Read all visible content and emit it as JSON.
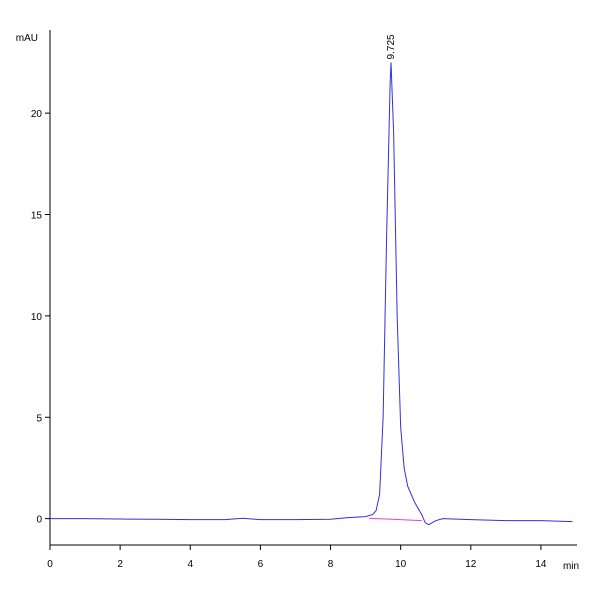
{
  "chart_data": {
    "type": "line",
    "y_label": "mAU",
    "x_label": "min",
    "x": [
      0,
      1,
      2,
      3,
      4,
      5,
      5.5,
      6,
      7,
      8,
      8.5,
      9,
      9.2,
      9.3,
      9.4,
      9.5,
      9.6,
      9.7,
      9.725,
      9.8,
      9.9,
      10.0,
      10.1,
      10.2,
      10.4,
      10.6,
      10.7,
      10.8,
      11,
      11.2,
      12,
      13,
      14,
      14.9
    ],
    "values": [
      0,
      0,
      -0.02,
      -0.03,
      -0.05,
      -0.05,
      0.02,
      -0.05,
      -0.05,
      -0.03,
      0.05,
      0.1,
      0.2,
      0.4,
      1.2,
      5,
      14,
      21.5,
      22.5,
      19,
      10,
      4.5,
      2.5,
      1.6,
      0.8,
      0.2,
      -0.2,
      -0.3,
      -0.1,
      0,
      -0.05,
      -0.1,
      -0.1,
      -0.15
    ],
    "color": "#3030e0",
    "baseline": {
      "x": [
        9.1,
        10.6
      ],
      "values": [
        0.02,
        -0.1
      ],
      "color": "#e040e0"
    },
    "peak": {
      "x": 9.725,
      "y": 22.5
    },
    "xlim": [
      0,
      15
    ],
    "xticks": [
      0,
      2,
      4,
      6,
      8,
      10,
      12,
      14
    ],
    "ylim": [
      -1.3,
      24.1
    ],
    "yticks": [
      0,
      5,
      10,
      15,
      20
    ]
  }
}
